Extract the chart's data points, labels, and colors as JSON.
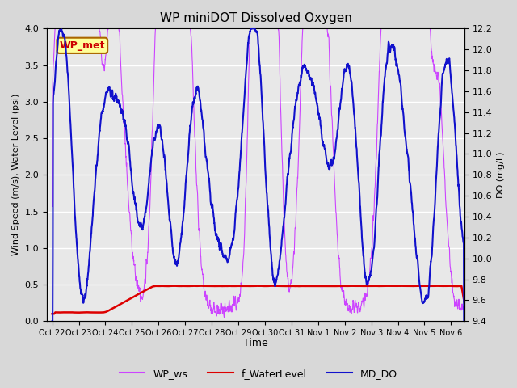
{
  "title": "WP miniDOT Dissolved Oxygen",
  "ylabel_left": "Wind Speed (m/s), Water Level (psi)",
  "ylabel_right": "DO (mg/L)",
  "xlabel": "Time",
  "ylim_left": [
    0.0,
    4.0
  ],
  "ylim_right": [
    9.4,
    12.2
  ],
  "xtick_labels": [
    "Oct 22",
    "Oct 23",
    "Oct 24",
    "Oct 25",
    "Oct 26",
    "Oct 27",
    "Oct 28",
    "Oct 29",
    "Oct 30",
    "Oct 31",
    "Nov 1",
    "Nov 2",
    "Nov 3",
    "Nov 4",
    "Nov 5",
    "Nov 6"
  ],
  "legend_labels": [
    "WP_ws",
    "f_WaterLevel",
    "MD_DO"
  ],
  "legend_colors": [
    "#cc44ff",
    "#dd0000",
    "#1111cc"
  ],
  "wp_met_label": "WP_met",
  "wp_met_box_color": "#ffff99",
  "wp_met_text_color": "#cc0000",
  "fig_bg_color": "#d8d8d8",
  "plot_bg_color": "#e8e8e8",
  "wp_ws_color": "#cc44ff",
  "f_water_color": "#dd0000",
  "md_do_color": "#1111cc",
  "grid_color": "#ffffff",
  "yticks_left": [
    0.0,
    0.5,
    1.0,
    1.5,
    2.0,
    2.5,
    3.0,
    3.5,
    4.0
  ],
  "yticks_right": [
    9.4,
    9.6,
    9.8,
    10.0,
    10.2,
    10.4,
    10.6,
    10.8,
    11.0,
    11.2,
    11.4,
    11.6,
    11.8,
    12.0,
    12.2
  ]
}
